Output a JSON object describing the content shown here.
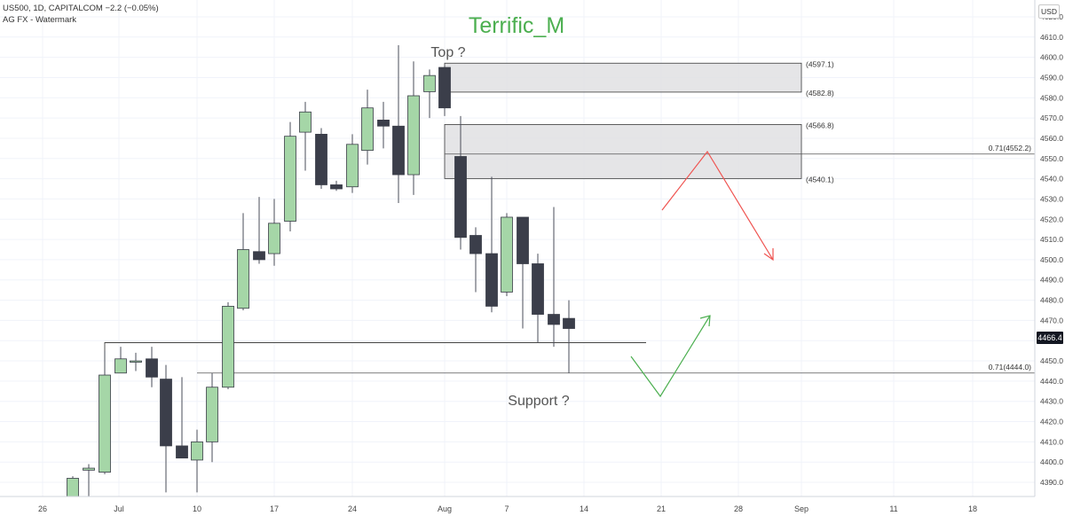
{
  "header": {
    "symbol_line": "US500, 1D, CAPITALCOM  −2.2 (−0.05%)",
    "indicator_line": "AG FX - Watermark"
  },
  "watermark_title": "Terrific_M",
  "currency_button": "USD",
  "last_price": "4466.4",
  "annotations": {
    "top": "Top ?",
    "support": "Support ?"
  },
  "colors": {
    "up": "#a5d6a7",
    "down": "#3b3e4a",
    "accent_green": "#4caf50",
    "accent_red": "#ef5350",
    "zone": "#e0e0e3"
  },
  "chart_data": {
    "type": "candlestick",
    "symbol": "US500",
    "timeframe": "1D",
    "ylim": [
      4383,
      4627
    ],
    "y_ticks": [
      4390.0,
      4400.0,
      4410.0,
      4420.0,
      4430.0,
      4440.0,
      4450.0,
      4460.0,
      4470.0,
      4480.0,
      4490.0,
      4500.0,
      4510.0,
      4520.0,
      4530.0,
      4540.0,
      4550.0,
      4560.0,
      4570.0,
      4580.0,
      4590.0,
      4600.0,
      4610.0,
      4620.0
    ],
    "x_ticks": [
      "26",
      "Jul",
      "10",
      "17",
      "24",
      "Aug",
      "7",
      "14",
      "21",
      "28",
      "Sep",
      "11",
      "18"
    ],
    "candles": [
      {
        "o": 4383,
        "h": 4393,
        "l": 4370,
        "c": 4392
      },
      {
        "o": 4396,
        "h": 4399,
        "l": 4382,
        "c": 4397
      },
      {
        "o": 4395,
        "h": 4455,
        "l": 4394,
        "c": 4443
      },
      {
        "o": 4444,
        "h": 4457,
        "l": 4444,
        "c": 4451
      },
      {
        "o": 4450,
        "h": 4454,
        "l": 4445,
        "c": 4450
      },
      {
        "o": 4451,
        "h": 4457,
        "l": 4437,
        "c": 4442
      },
      {
        "o": 4441,
        "h": 4448,
        "l": 4385,
        "c": 4408
      },
      {
        "o": 4408,
        "h": 4442,
        "l": 4402,
        "c": 4402
      },
      {
        "o": 4401,
        "h": 4416,
        "l": 4385,
        "c": 4410
      },
      {
        "o": 4410,
        "h": 4444,
        "l": 4400,
        "c": 4437
      },
      {
        "o": 4437,
        "h": 4479,
        "l": 4436,
        "c": 4477
      },
      {
        "o": 4476,
        "h": 4523,
        "l": 4475,
        "c": 4505
      },
      {
        "o": 4504,
        "h": 4531,
        "l": 4498,
        "c": 4500
      },
      {
        "o": 4503,
        "h": 4530,
        "l": 4497,
        "c": 4518
      },
      {
        "o": 4519,
        "h": 4568,
        "l": 4514,
        "c": 4561
      },
      {
        "o": 4563,
        "h": 4578,
        "l": 4544,
        "c": 4573
      },
      {
        "o": 4562,
        "h": 4565,
        "l": 4535,
        "c": 4537
      },
      {
        "o": 4537,
        "h": 4539,
        "l": 4534,
        "c": 4535
      },
      {
        "o": 4536,
        "h": 4562,
        "l": 4533,
        "c": 4557
      },
      {
        "o": 4554,
        "h": 4584,
        "l": 4547,
        "c": 4575
      },
      {
        "o": 4569,
        "h": 4578,
        "l": 4555,
        "c": 4566
      },
      {
        "o": 4566,
        "h": 4606,
        "l": 4528,
        "c": 4542
      },
      {
        "o": 4542,
        "h": 4598,
        "l": 4532,
        "c": 4581
      },
      {
        "o": 4583,
        "h": 4594,
        "l": 4570,
        "c": 4591
      },
      {
        "o": 4595,
        "h": 4596,
        "l": 4571,
        "c": 4575
      },
      {
        "o": 4551,
        "h": 4571,
        "l": 4505,
        "c": 4511
      },
      {
        "o": 4512,
        "h": 4516,
        "l": 4484,
        "c": 4503
      },
      {
        "o": 4503,
        "h": 4541,
        "l": 4474,
        "c": 4477
      },
      {
        "o": 4484,
        "h": 4523,
        "l": 4482,
        "c": 4521
      },
      {
        "o": 4521,
        "h": 4521,
        "l": 4466,
        "c": 4498
      },
      {
        "o": 4498,
        "h": 4503,
        "l": 4459,
        "c": 4473
      },
      {
        "o": 4473,
        "h": 4526,
        "l": 4457,
        "c": 4468
      },
      {
        "o": 4471,
        "h": 4480,
        "l": 4444,
        "c": 4466
      }
    ],
    "zones": [
      {
        "from": 4582.8,
        "to": 4597.1,
        "labels": [
          "(4597.1)",
          "(4582.8)"
        ]
      },
      {
        "from": 4540.1,
        "to": 4566.8,
        "labels": [
          "(4566.8)",
          "(4540.1)"
        ]
      }
    ],
    "levels": [
      {
        "value": 4552.2,
        "label": "0.71(4552.2)"
      },
      {
        "value": 4444.0,
        "label": "0.71(4444.0)"
      },
      {
        "value": 4459,
        "label": ""
      }
    ]
  }
}
